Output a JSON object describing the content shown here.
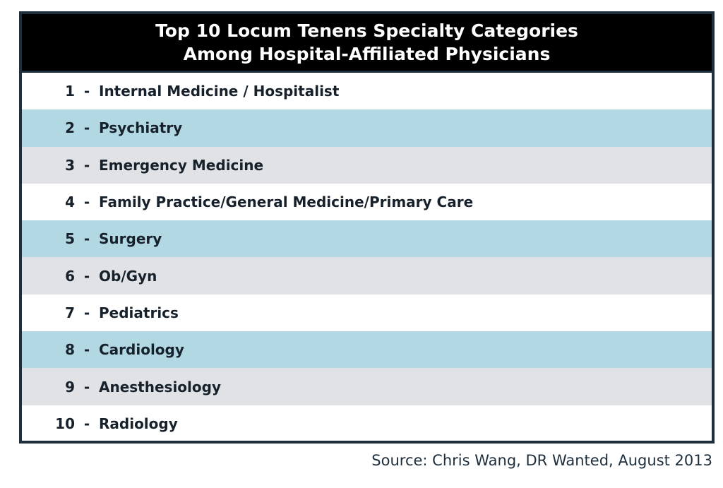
{
  "header": {
    "title_line1": "Top 10 Locum Tenens Specialty Categories",
    "title_line2": "Among Hospital-Affiliated Physicians"
  },
  "colors": {
    "header_bg": "#000000",
    "border": "#1d2e3d",
    "row_white": "#ffffff",
    "row_blue": "#b2d8e4",
    "row_gray": "#e0e2e5"
  },
  "separator": "-",
  "rows": [
    {
      "rank": "1",
      "name": "Internal Medicine / Hospitalist",
      "shade": "white"
    },
    {
      "rank": "2",
      "name": "Psychiatry",
      "shade": "blue"
    },
    {
      "rank": "3",
      "name": "Emergency Medicine",
      "shade": "gray"
    },
    {
      "rank": "4",
      "name": "Family Practice/General Medicine/Primary Care",
      "shade": "white"
    },
    {
      "rank": "5",
      "name": "Surgery",
      "shade": "blue"
    },
    {
      "rank": "6",
      "name": "Ob/Gyn",
      "shade": "gray"
    },
    {
      "rank": "7",
      "name": "Pediatrics",
      "shade": "white"
    },
    {
      "rank": "8",
      "name": "Cardiology",
      "shade": "blue"
    },
    {
      "rank": "9",
      "name": "Anesthesiology",
      "shade": "gray"
    },
    {
      "rank": "10",
      "name": "Radiology",
      "shade": "white"
    }
  ],
  "source": "Source: Chris Wang, DR Wanted, August 2013"
}
